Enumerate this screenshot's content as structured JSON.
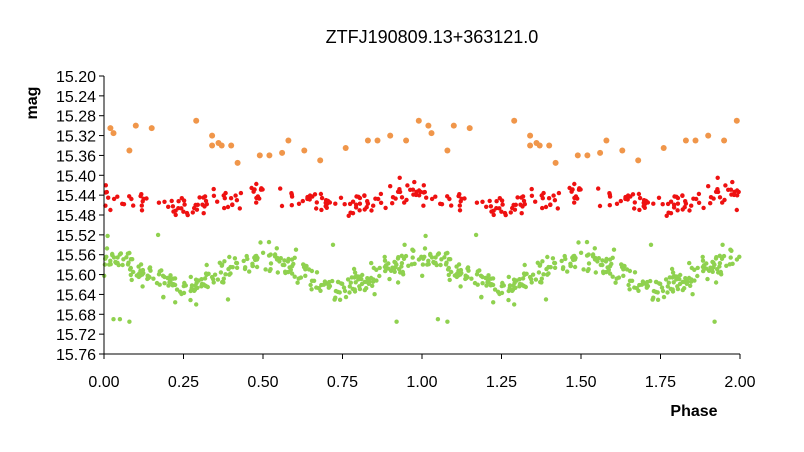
{
  "chart_data": {
    "type": "scatter",
    "title": "ZTFJ190809.13+363121.0",
    "xlabel": "Phase",
    "ylabel": "mag",
    "xlim": [
      0.0,
      2.0
    ],
    "ylim": [
      15.2,
      15.76
    ],
    "y_inverted": true,
    "grid": false,
    "x_ticks": [
      "0.00",
      "0.25",
      "0.50",
      "0.75",
      "1.00",
      "1.25",
      "1.50",
      "1.75",
      "2.00"
    ],
    "y_ticks": [
      "15.20",
      "15.24",
      "15.28",
      "15.32",
      "15.36",
      "15.40",
      "15.44",
      "15.48",
      "15.52",
      "15.56",
      "15.60",
      "15.64",
      "15.68",
      "15.72",
      "15.76"
    ],
    "series": [
      {
        "color": "#f0964a",
        "points": [
          [
            0.02,
            15.305
          ],
          [
            0.03,
            15.315
          ],
          [
            0.08,
            15.35
          ],
          [
            0.1,
            15.3
          ],
          [
            0.15,
            15.305
          ],
          [
            0.29,
            15.29
          ],
          [
            0.34,
            15.32
          ],
          [
            0.34,
            15.34
          ],
          [
            0.36,
            15.335
          ],
          [
            0.37,
            15.34
          ],
          [
            0.4,
            15.34
          ],
          [
            0.42,
            15.375
          ],
          [
            0.49,
            15.36
          ],
          [
            0.52,
            15.36
          ],
          [
            0.56,
            15.355
          ],
          [
            0.58,
            15.33
          ],
          [
            0.63,
            15.35
          ],
          [
            0.68,
            15.37
          ],
          [
            0.76,
            15.345
          ],
          [
            0.83,
            15.33
          ],
          [
            0.86,
            15.33
          ],
          [
            0.9,
            15.32
          ],
          [
            0.95,
            15.33
          ],
          [
            0.99,
            15.29
          ],
          [
            1.02,
            15.3
          ],
          [
            1.03,
            15.315
          ],
          [
            1.08,
            15.35
          ],
          [
            1.1,
            15.3
          ],
          [
            1.15,
            15.305
          ],
          [
            1.29,
            15.29
          ],
          [
            1.34,
            15.32
          ],
          [
            1.34,
            15.34
          ],
          [
            1.36,
            15.335
          ],
          [
            1.37,
            15.34
          ],
          [
            1.4,
            15.34
          ],
          [
            1.42,
            15.375
          ],
          [
            1.49,
            15.36
          ],
          [
            1.52,
            15.36
          ],
          [
            1.56,
            15.355
          ],
          [
            1.58,
            15.33
          ],
          [
            1.63,
            15.35
          ],
          [
            1.68,
            15.37
          ],
          [
            1.76,
            15.345
          ],
          [
            1.83,
            15.33
          ],
          [
            1.86,
            15.33
          ],
          [
            1.9,
            15.32
          ],
          [
            1.95,
            15.33
          ],
          [
            1.99,
            15.29
          ]
        ]
      },
      {
        "color": "#ee1111",
        "model": {
          "mean": 15.45,
          "amplitude": 0.012,
          "phase_of_max": 0.0,
          "scatter": 0.011,
          "n_per_cycle": 150
        },
        "extra_points": [
          [
            0.93,
            15.405
          ],
          [
            1.93,
            15.405
          ],
          [
            0.02,
            15.47
          ],
          [
            1.99,
            15.47
          ]
        ]
      },
      {
        "color": "#8fd14f",
        "model": {
          "mean": 15.595,
          "amplitude": 0.028,
          "phase_of_max": 0.0,
          "scatter": 0.013,
          "n_per_cycle": 300
        },
        "extra_points": [
          [
            0.05,
            15.69
          ],
          [
            0.08,
            15.695
          ],
          [
            0.03,
            15.69
          ],
          [
            0.92,
            15.695
          ],
          [
            1.05,
            15.69
          ],
          [
            1.08,
            15.695
          ],
          [
            1.92,
            15.695
          ],
          [
            0.17,
            15.52
          ],
          [
            1.17,
            15.52
          ],
          [
            0.29,
            15.66
          ],
          [
            1.29,
            15.66
          ],
          [
            0.72,
            15.54
          ],
          [
            1.72,
            15.54
          ],
          [
            0.39,
            15.65
          ],
          [
            1.39,
            15.65
          ]
        ]
      }
    ]
  }
}
